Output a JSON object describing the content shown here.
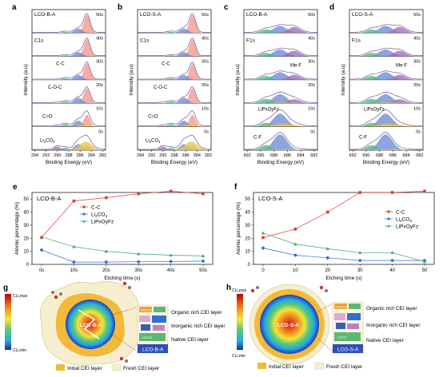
{
  "panel_letters": {
    "a": "a",
    "b": "b",
    "c": "c",
    "d": "d",
    "e": "e",
    "f": "f",
    "g": "g",
    "h": "h"
  },
  "xps": {
    "ylabel": "Intensity (a.u)",
    "xlabel": "Binding Energy (eV)",
    "times": [
      "50s",
      "40s",
      "30s",
      "20s",
      "10s",
      "0s"
    ],
    "c1s_ticks": [
      "294",
      "292",
      "290",
      "288",
      "286",
      "284",
      "282"
    ],
    "f1s_ticks": [
      "692",
      "690",
      "688",
      "686",
      "684",
      "682"
    ],
    "a": {
      "sample": "LCO-B-A",
      "element": "C1s",
      "annotations": {
        "cc": "C-C",
        "coc": "C-O-C",
        "co": "C=O",
        "li2co3": "Li2CO3"
      }
    },
    "b": {
      "sample": "LCO-S-A",
      "element": "C1s",
      "annotations": {
        "cc": "C-C",
        "coc": "C-O-C",
        "co": "C=O",
        "li2co3": "Li2CO3"
      }
    },
    "c": {
      "sample": "LCO-B-A",
      "element": "F1s",
      "annotations": {
        "mef": "Me-F",
        "lipof": "LiPxOyFz",
        "cf": "C-F"
      }
    },
    "d": {
      "sample": "LCO-S-A",
      "element": "F1s",
      "annotations": {
        "mef": "Me-F",
        "lipof": "LiPxOyFz",
        "cf": "C-F"
      }
    }
  },
  "colors": {
    "cc": "#e03a3a",
    "li2co3": "#2f6fd6",
    "lipof": "#3aa36a",
    "peak_red": "#f29a90",
    "peak_blue": "#6f8fd6",
    "peak_green": "#5ab88a",
    "peak_yellow": "#e6c84a",
    "peak_purple": "#a06fc0"
  },
  "chart_data": [
    {
      "type": "line",
      "panel": "e",
      "title": "LCO-B-A",
      "xlabel": "Etching time (s)",
      "ylabel": "Atomic percentage (%)",
      "categories": [
        "0s",
        "10s",
        "20s",
        "30s",
        "40s",
        "50s"
      ],
      "ylim": [
        0,
        55
      ],
      "yticks": [
        "0",
        "10",
        "20",
        "30",
        "40",
        "50"
      ],
      "legend_position": "top-left",
      "series": [
        {
          "name": "C-C",
          "values": [
            20.5,
            48.5,
            51,
            54,
            56,
            54
          ]
        },
        {
          "name": "Li2CO3",
          "values": [
            11,
            1.8,
            1.8,
            2,
            2.2,
            2.5
          ]
        },
        {
          "name": "LiPxOyFz",
          "values": [
            21,
            13.5,
            10,
            8,
            7,
            6.5
          ]
        }
      ]
    },
    {
      "type": "line",
      "panel": "f",
      "title": "LCO-S-A",
      "xlabel": "Etching time (s)",
      "ylabel": "Atomic percentage (%)",
      "categories": [
        "0",
        "10",
        "20",
        "30",
        "40",
        "50"
      ],
      "ylim": [
        0,
        55
      ],
      "yticks": [
        "0",
        "10",
        "20",
        "30",
        "40",
        "50"
      ],
      "legend_position": "top-right",
      "series": [
        {
          "name": "C-C",
          "values": [
            20.5,
            27,
            40,
            55,
            55,
            56
          ]
        },
        {
          "name": "Li2CO3",
          "values": [
            12.5,
            7,
            5,
            3,
            3,
            3
          ]
        },
        {
          "name": "LiPxOyFz",
          "values": [
            24,
            15.5,
            12,
            9,
            9,
            2
          ]
        }
      ]
    }
  ],
  "schematic_g": {
    "label": "LCO-B-A",
    "scale_top": "CLi,max",
    "scale_bottom": "CLi,min",
    "layers": [
      "Organic rich CEI layer",
      "Inorganic rich CEI layer",
      "Native CEI layer"
    ],
    "legend_initial": "Initial CEI layer",
    "legend_fresh": "Fresh CEI layer",
    "inset_labels": {
      "ch2co3": "CH2CO3",
      "lipof": "LiPxOyFz",
      "lif": "LiF",
      "li2co3": "Li2CO3"
    }
  },
  "schematic_h": {
    "label": "LCO-S-A",
    "scale_top": "CLi,max",
    "scale_bottom": "CLi,min",
    "layers": [
      "Organic rich CEI layer",
      "Inorganic rich CEI layer",
      "Native CEI layer"
    ],
    "legend_initial": "Initial CEI layer",
    "legend_fresh": "Fresh CEI layer",
    "inset_labels": {
      "ch2co3": "CH2CO3",
      "lipof": "LiPxOyFz",
      "lif": "LiF",
      "li2co3": "Li2CO3"
    }
  }
}
